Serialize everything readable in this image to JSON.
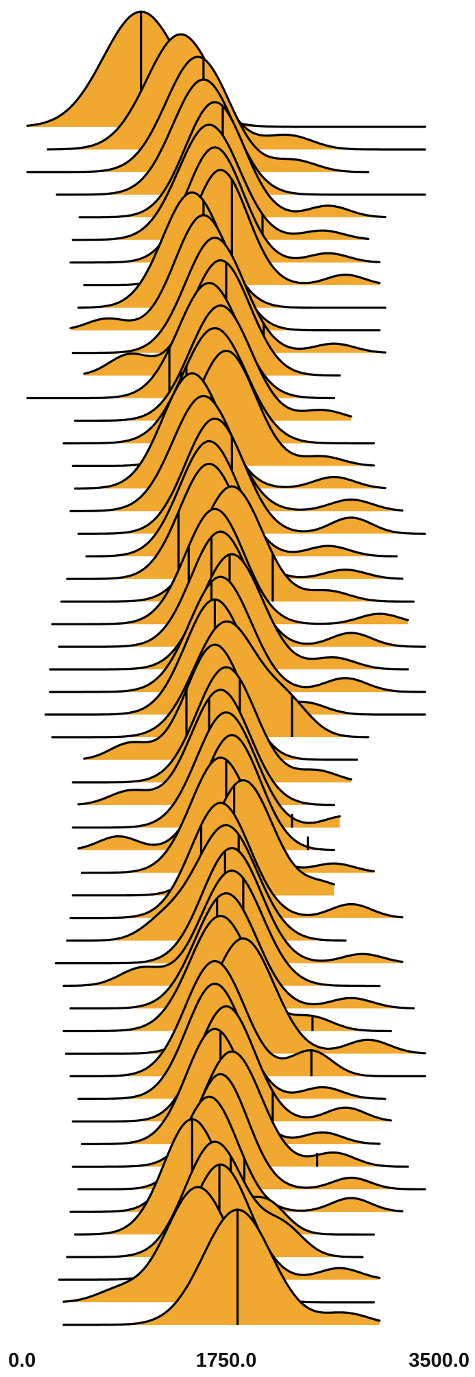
{
  "chart_data": {
    "type": "ridgeline",
    "xlim": [
      0,
      3500
    ],
    "x_ticks": [
      "0.0",
      "1750.0",
      "3500.0"
    ],
    "fill_color": "#F0A830",
    "line_color": "#000000",
    "grid": false,
    "title": "",
    "xlabel": "",
    "ylabel": "",
    "series": [
      {
        "peak": 1000,
        "spread": 330,
        "marker": 1000,
        "range": [
          0,
          3500
        ],
        "peak_label": null,
        "bump": null
      },
      {
        "peak": 1350,
        "spread": 300,
        "marker": 1800,
        "range": [
          180,
          3500
        ],
        "bump": [
          2300,
          0.12
        ]
      },
      {
        "peak": 1500,
        "spread": 280,
        "marker": 1550,
        "range": [
          0,
          3000
        ],
        "bump": [
          2350,
          0.1
        ]
      },
      {
        "peak": 1550,
        "spread": 270,
        "marker": 1970,
        "range": [
          260,
          3500
        ],
        "bump": null
      },
      {
        "peak": 1650,
        "spread": 260,
        "marker": 1720,
        "range": [
          460,
          3150
        ],
        "bump": [
          2650,
          0.1
        ]
      },
      {
        "peak": 1600,
        "spread": 270,
        "marker": 2070,
        "range": [
          400,
          3000
        ],
        "bump": [
          2600,
          0.08
        ]
      },
      {
        "peak": 1650,
        "spread": 250,
        "marker": 1400,
        "range": [
          380,
          3100
        ],
        "bump": [
          2650,
          0.08
        ]
      },
      {
        "peak": 1700,
        "spread": 240,
        "marker": 1800,
        "range": [
          500,
          3100
        ],
        "bump": [
          2800,
          0.09
        ]
      },
      {
        "peak": 1450,
        "spread": 260,
        "marker": 1550,
        "range": [
          450,
          3150
        ],
        "bump": null
      },
      {
        "peak": 1550,
        "spread": 250,
        "marker": 1850,
        "range": [
          380,
          3100
        ],
        "bump": [
          700,
          0.1
        ]
      },
      {
        "peak": 1650,
        "spread": 260,
        "marker": 2080,
        "range": [
          400,
          3150
        ],
        "bump": [
          2700,
          0.08
        ]
      },
      {
        "peak": 1700,
        "spread": 260,
        "marker": 1750,
        "range": [
          500,
          2750
        ],
        "bump": [
          900,
          0.18
        ]
      },
      {
        "peak": 1600,
        "spread": 270,
        "marker": 1250,
        "range": [
          0,
          2700
        ],
        "bump": null
      },
      {
        "peak": 1700,
        "spread": 270,
        "marker": 1350,
        "range": [
          420,
          2850
        ],
        "bump": [
          2600,
          0.09
        ]
      },
      {
        "peak": 1650,
        "spread": 280,
        "marker": 1400,
        "range": [
          320,
          3050
        ],
        "bump": null
      },
      {
        "peak": 1750,
        "spread": 260,
        "marker": 1240,
        "range": [
          400,
          3050
        ],
        "bump": [
          2600,
          0.08
        ]
      },
      {
        "peak": 1450,
        "spread": 260,
        "marker": 1620,
        "range": [
          420,
          3150
        ],
        "bump": [
          2700,
          0.1
        ]
      },
      {
        "peak": 1550,
        "spread": 270,
        "marker": 1950,
        "range": [
          380,
          3300
        ],
        "bump": [
          2850,
          0.1
        ]
      },
      {
        "peak": 1650,
        "spread": 260,
        "marker": 1800,
        "range": [
          450,
          3500
        ],
        "bump": [
          2850,
          0.14
        ]
      },
      {
        "peak": 1600,
        "spread": 260,
        "marker": 1950,
        "range": [
          520,
          3250
        ],
        "bump": [
          2650,
          0.09
        ]
      },
      {
        "peak": 1600,
        "spread": 260,
        "marker": 1330,
        "range": [
          350,
          3300
        ],
        "bump": [
          2800,
          0.08
        ]
      },
      {
        "peak": 1800,
        "spread": 270,
        "marker": 2160,
        "range": [
          300,
          3400
        ],
        "bump": [
          2650,
          0.09
        ]
      },
      {
        "peak": 1650,
        "spread": 260,
        "marker": 1420,
        "range": [
          220,
          3350
        ],
        "bump": [
          3100,
          0.09
        ]
      },
      {
        "peak": 1700,
        "spread": 260,
        "marker": 1620,
        "range": [
          280,
          3500
        ],
        "bump": [
          2850,
          0.12
        ]
      },
      {
        "peak": 1800,
        "spread": 270,
        "marker": 1780,
        "range": [
          200,
          3350
        ],
        "bump": [
          2700,
          0.1
        ]
      },
      {
        "peak": 1700,
        "spread": 270,
        "marker": 1620,
        "range": [
          200,
          3500
        ],
        "bump": [
          2800,
          0.12
        ]
      },
      {
        "peak": 1650,
        "spread": 260,
        "marker": 1650,
        "range": [
          160,
          3500
        ],
        "bump": [
          2450,
          0.1
        ]
      },
      {
        "peak": 1750,
        "spread": 280,
        "marker": 2330,
        "range": [
          220,
          3000
        ],
        "bump": [
          2300,
          0.25
        ]
      },
      {
        "peak": 1650,
        "spread": 250,
        "marker": 1400,
        "range": [
          500,
          2900
        ],
        "bump": [
          900,
          0.14
        ]
      },
      {
        "peak": 1750,
        "spread": 260,
        "marker": 1870,
        "range": [
          400,
          2850
        ],
        "bump": [
          2550,
          0.1
        ]
      },
      {
        "peak": 1700,
        "spread": 260,
        "marker": 1600,
        "range": [
          450,
          2700
        ],
        "bump": [
          900,
          0.12
        ]
      },
      {
        "peak": 1750,
        "spread": 260,
        "marker": 2330,
        "range": [
          400,
          2750
        ],
        "bump": [
          2800,
          0.1
        ]
      },
      {
        "peak": 1800,
        "spread": 250,
        "marker": 2470,
        "range": [
          450,
          2700
        ],
        "bump": [
          800,
          0.12
        ]
      },
      {
        "peak": 1700,
        "spread": 260,
        "marker": 1750,
        "range": [
          480,
          3050
        ],
        "bump": [
          2700,
          0.08
        ]
      },
      {
        "peak": 1900,
        "spread": 260,
        "marker": 1820,
        "range": [
          400,
          2700
        ],
        "bump": [
          2600,
          0.1
        ]
      },
      {
        "peak": 1700,
        "spread": 260,
        "marker": 1530,
        "range": [
          380,
          3300
        ],
        "bump": [
          2850,
          0.12
        ]
      },
      {
        "peak": 1750,
        "spread": 270,
        "marker": 1860,
        "range": [
          350,
          2800
        ],
        "bump": [
          1200,
          0.15
        ]
      },
      {
        "peak": 1800,
        "spread": 260,
        "marker": 1740,
        "range": [
          250,
          3300
        ],
        "bump": [
          2950,
          0.08
        ]
      },
      {
        "peak": 1800,
        "spread": 270,
        "marker": 1900,
        "range": [
          320,
          3100
        ],
        "bump": [
          1000,
          0.15
        ]
      },
      {
        "peak": 1750,
        "spread": 270,
        "marker": 1670,
        "range": [
          380,
          3400
        ],
        "bump": [
          2850,
          0.09
        ]
      },
      {
        "peak": 1700,
        "spread": 270,
        "marker": 2510,
        "range": [
          320,
          3200
        ],
        "bump": [
          2500,
          0.12
        ]
      },
      {
        "peak": 1900,
        "spread": 270,
        "marker": 1600,
        "range": [
          340,
          3500
        ],
        "bump": [
          3000,
          0.12
        ]
      },
      {
        "peak": 1650,
        "spread": 260,
        "marker": 2500,
        "range": [
          380,
          3500
        ],
        "bump": [
          2500,
          0.22
        ]
      },
      {
        "peak": 1650,
        "spread": 250,
        "marker": 2000,
        "range": [
          450,
          3150
        ],
        "bump": [
          2600,
          0.1
        ]
      },
      {
        "peak": 1750,
        "spread": 250,
        "marker": 2160,
        "range": [
          400,
          3200
        ],
        "bump": [
          2800,
          0.12
        ]
      },
      {
        "peak": 1650,
        "spread": 250,
        "marker": 1700,
        "range": [
          480,
          3100
        ],
        "bump": [
          2600,
          0.1
        ]
      },
      {
        "peak": 1800,
        "spread": 260,
        "marker": 2550,
        "range": [
          400,
          3350
        ],
        "bump": [
          2700,
          0.12
        ]
      },
      {
        "peak": 1700,
        "spread": 240,
        "marker": 1250,
        "range": [
          450,
          3500
        ],
        "bump": [
          2850,
          0.1
        ]
      },
      {
        "peak": 1600,
        "spread": 250,
        "marker": 1910,
        "range": [
          380,
          3300
        ],
        "bump": [
          2850,
          0.12
        ]
      },
      {
        "peak": 1450,
        "spread": 250,
        "marker": 1450,
        "range": [
          420,
          3050
        ],
        "bump": [
          2100,
          0.28
        ]
      },
      {
        "peak": 1650,
        "spread": 260,
        "marker": 1790,
        "range": [
          350,
          2950
        ],
        "bump": [
          2250,
          0.25
        ]
      },
      {
        "peak": 1700,
        "spread": 260,
        "marker": 1690,
        "range": [
          280,
          3100
        ],
        "bump": [
          2750,
          0.1
        ]
      },
      {
        "peak": 1500,
        "spread": 280,
        "marker": 1840,
        "range": [
          320,
          3050
        ],
        "bump": [
          800,
          0.1
        ]
      },
      {
        "peak": 1850,
        "spread": 300,
        "marker": 1850,
        "range": [
          320,
          3100
        ],
        "bump": [
          2800,
          0.1
        ]
      }
    ]
  }
}
